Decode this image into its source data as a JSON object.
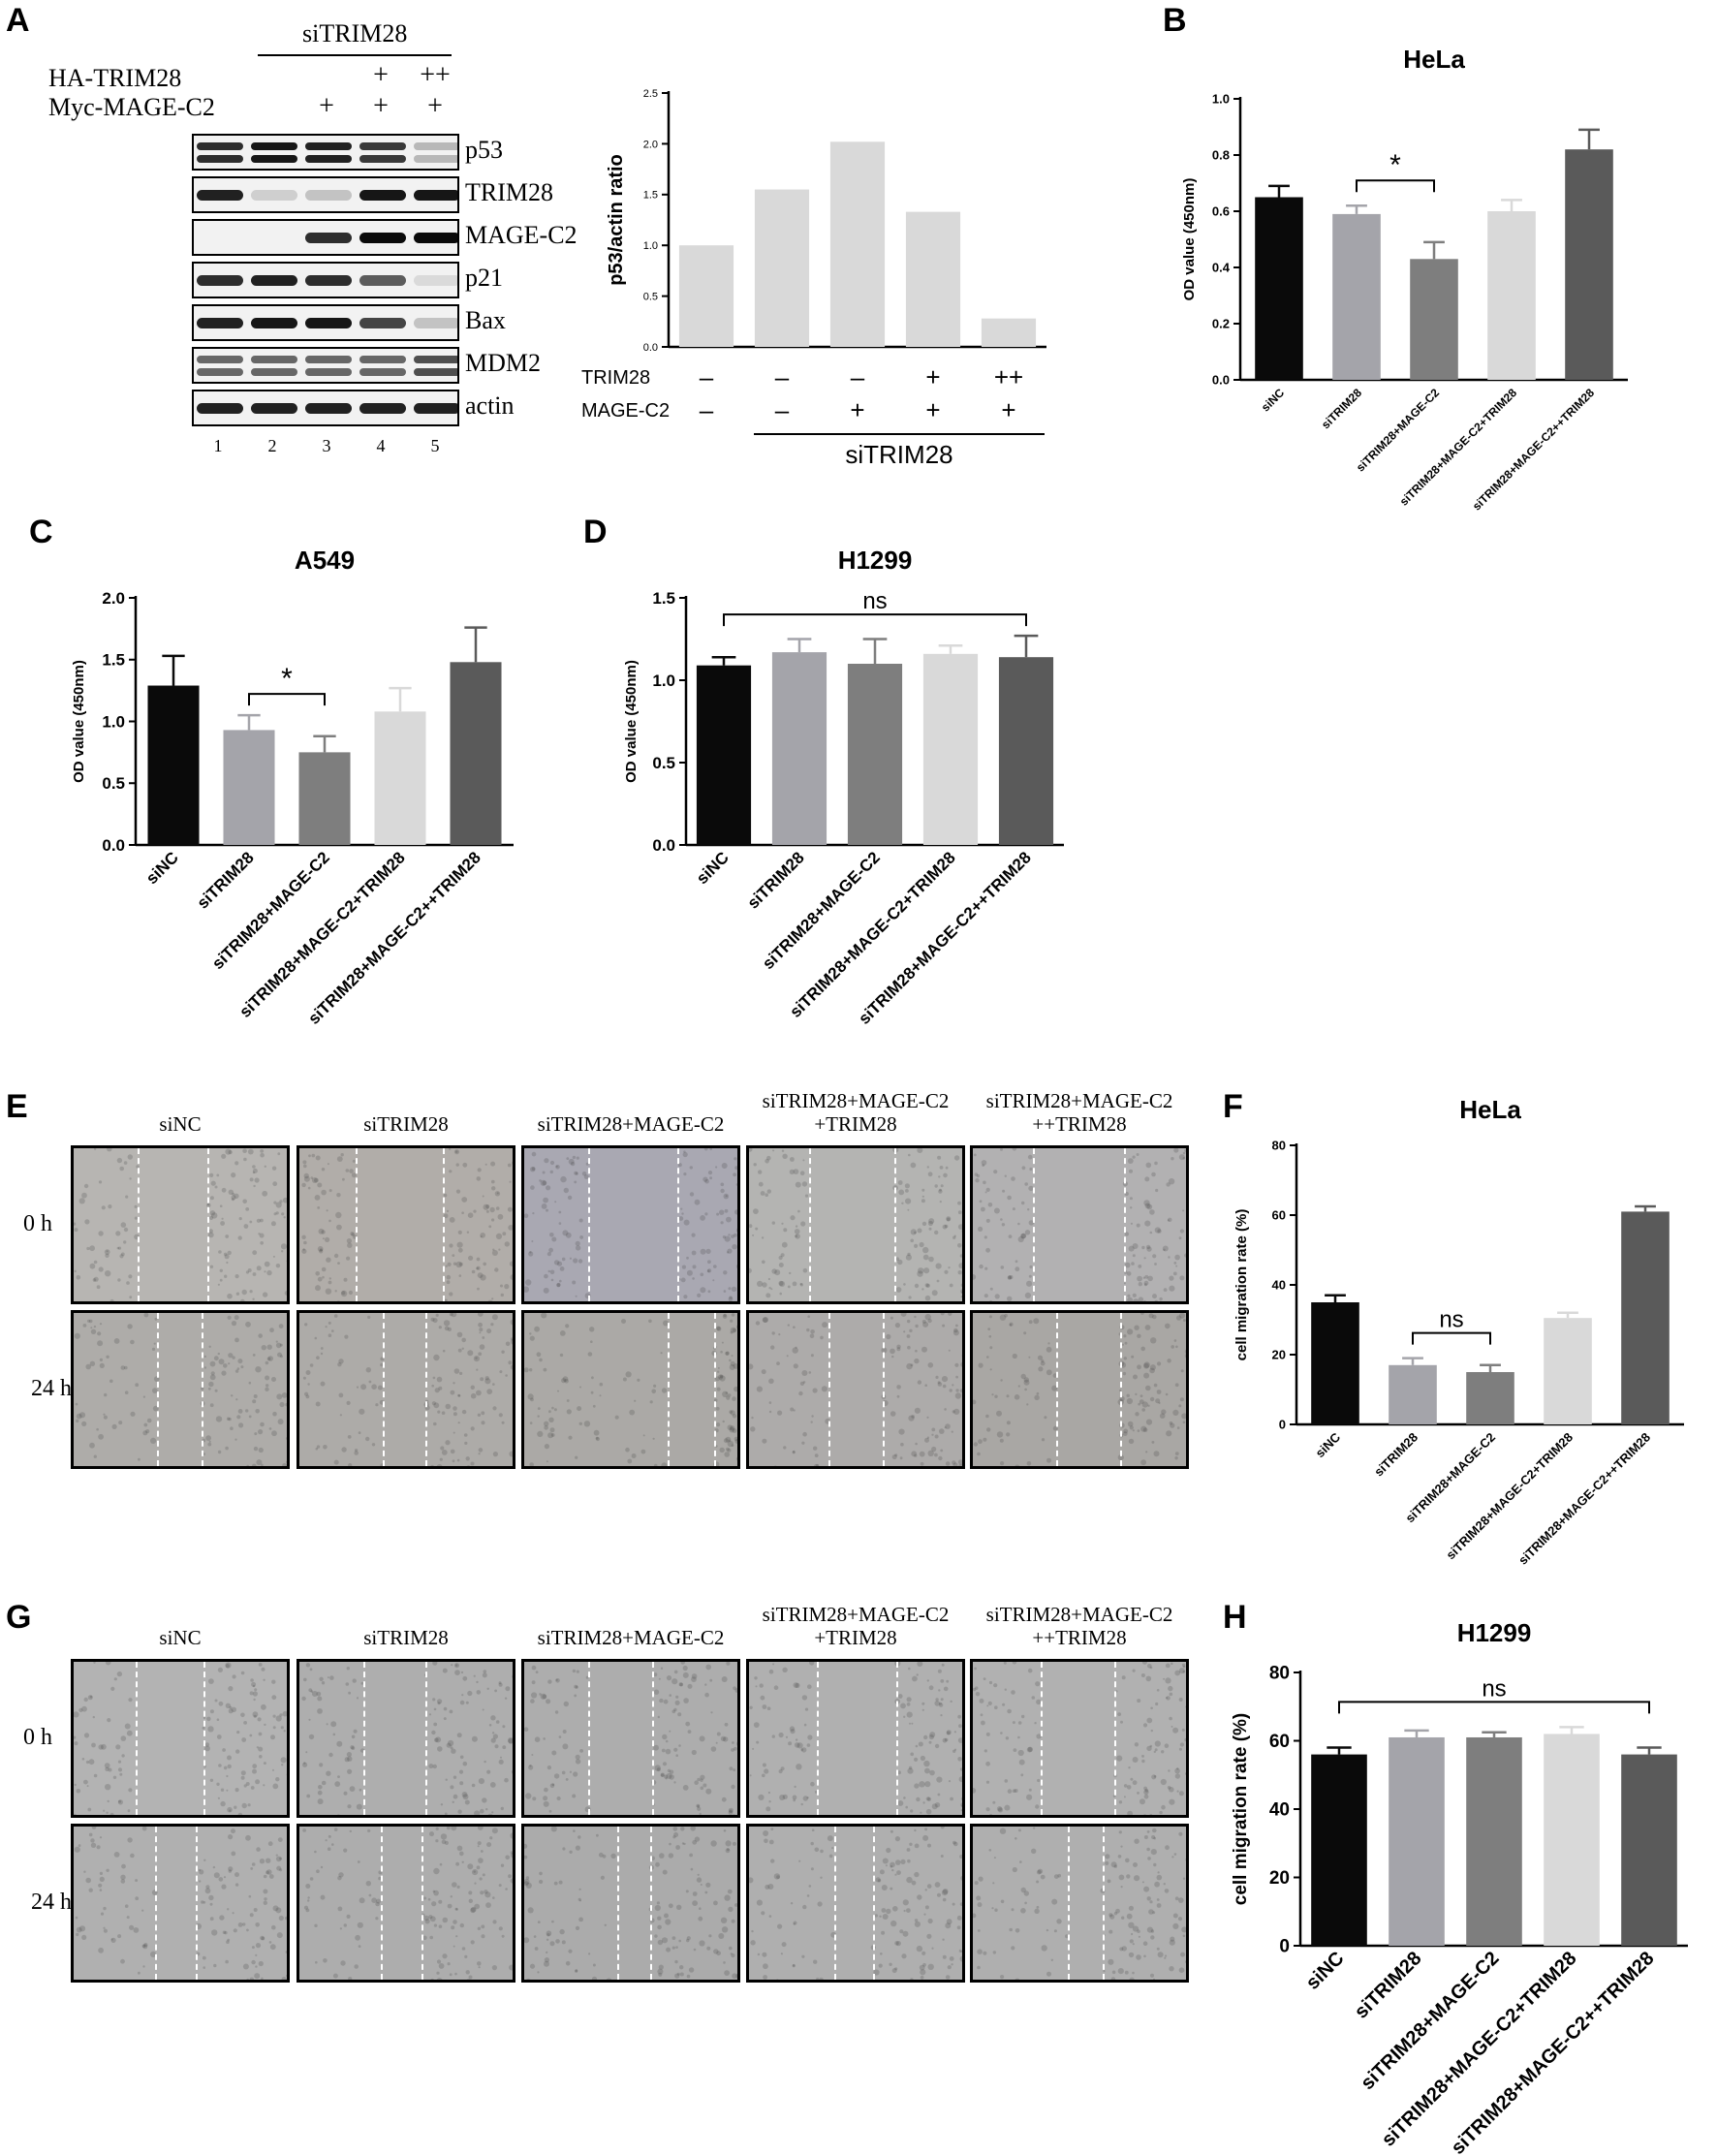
{
  "panels": {
    "a": "A",
    "b": "B",
    "c": "C",
    "d": "D",
    "e": "E",
    "f": "F",
    "g": "G",
    "h": "H"
  },
  "blot": {
    "top_group": "siTRIM28",
    "row_ha": "HA-TRIM28",
    "row_myc": "Myc-MAGE-C2",
    "ha_signs": [
      "",
      "",
      "",
      "+",
      "++"
    ],
    "myc_signs": [
      "",
      "",
      "+",
      "+",
      "+"
    ],
    "bands": [
      "p53",
      "TRIM28",
      "MAGE-C2",
      "p21",
      "Bax",
      "MDM2",
      "actin"
    ],
    "lanes": [
      "1",
      "2",
      "3",
      "4",
      "5"
    ]
  },
  "ratio_footer": {
    "trim28_label": "TRIM28",
    "magec2_label": "MAGE-C2",
    "trim28_signs": [
      "–",
      "–",
      "–",
      "+",
      "++"
    ],
    "magec2_signs": [
      "–",
      "–",
      "+",
      "+",
      "+"
    ],
    "group_label": "siTRIM28"
  },
  "categories": [
    "siNC",
    "siTRIM28",
    "siTRIM28+MAGE-C2",
    "siTRIM28+MAGE-C2+TRIM28",
    "siTRIM28+MAGE-C2++TRIM28"
  ],
  "bar_colors": [
    "#0a0a0a",
    "#a4a4aa",
    "#7e7e7e",
    "#d9d9d9",
    "#5a5a5a"
  ],
  "chart_data": [
    {
      "id": "A-ratio",
      "type": "bar",
      "title": "",
      "xlabel": "",
      "ylabel": "p53/actin ratio",
      "ylim": [
        0,
        2.5
      ],
      "yticks": [
        "0.0",
        "0.5",
        "1.0",
        "1.5",
        "2.0",
        "2.5"
      ],
      "ytick_values": [
        0,
        0.5,
        1,
        1.5,
        2,
        2.5
      ],
      "categories": [
        "1",
        "2",
        "3",
        "4",
        "5"
      ],
      "values": [
        1.0,
        1.55,
        2.02,
        1.33,
        0.28
      ],
      "errors": [
        0,
        0,
        0,
        0,
        0
      ],
      "uniform_color": "#d9d9d9",
      "show_category_labels": false
    },
    {
      "id": "B",
      "type": "bar",
      "title": "HeLa",
      "xlabel": "",
      "ylabel": "OD value (450nm)",
      "ylim": [
        0,
        1.0
      ],
      "yticks": [
        "0.0",
        "0.2",
        "0.4",
        "0.6",
        "0.8",
        "1.0"
      ],
      "ytick_values": [
        0,
        0.2,
        0.4,
        0.6,
        0.8,
        1.0
      ],
      "values": [
        0.65,
        0.59,
        0.43,
        0.6,
        0.82
      ],
      "errors": [
        0.04,
        0.03,
        0.06,
        0.04,
        0.07
      ],
      "significance": [
        {
          "from": 1,
          "to": 2,
          "label": "*"
        }
      ]
    },
    {
      "id": "C",
      "type": "bar",
      "title": "A549",
      "xlabel": "",
      "ylabel": "OD value (450nm)",
      "ylim": [
        0,
        2.0
      ],
      "yticks": [
        "0.0",
        "0.5",
        "1.0",
        "1.5",
        "2.0"
      ],
      "ytick_values": [
        0,
        0.5,
        1.0,
        1.5,
        2.0
      ],
      "values": [
        1.29,
        0.93,
        0.75,
        1.08,
        1.48
      ],
      "errors": [
        0.24,
        0.12,
        0.13,
        0.19,
        0.28
      ],
      "significance": [
        {
          "from": 1,
          "to": 2,
          "label": "*"
        }
      ]
    },
    {
      "id": "D",
      "type": "bar",
      "title": "H1299",
      "xlabel": "",
      "ylabel": "OD value (450nm)",
      "ylim": [
        0,
        1.5
      ],
      "yticks": [
        "0.0",
        "0.5",
        "1.0",
        "1.5"
      ],
      "ytick_values": [
        0,
        0.5,
        1.0,
        1.5
      ],
      "values": [
        1.09,
        1.17,
        1.1,
        1.16,
        1.14
      ],
      "errors": [
        0.05,
        0.08,
        0.15,
        0.05,
        0.13
      ],
      "significance": [
        {
          "from": 0,
          "to": 4,
          "label": "ns"
        }
      ]
    },
    {
      "id": "F",
      "type": "bar",
      "title": "HeLa",
      "xlabel": "",
      "ylabel": "cell migration rate (%)",
      "ylim": [
        0,
        80
      ],
      "yticks": [
        "0",
        "20",
        "40",
        "60",
        "80"
      ],
      "ytick_values": [
        0,
        20,
        40,
        60,
        80
      ],
      "values": [
        35,
        17,
        15,
        30.5,
        61
      ],
      "errors": [
        2,
        2,
        2,
        1.5,
        1.5
      ],
      "significance": [
        {
          "from": 1,
          "to": 2,
          "label": "ns"
        }
      ]
    },
    {
      "id": "H",
      "type": "bar",
      "title": "H1299",
      "xlabel": "",
      "ylabel": "cell migration rate (%)",
      "ylim": [
        0,
        80
      ],
      "yticks": [
        "0",
        "20",
        "40",
        "60",
        "80"
      ],
      "ytick_values": [
        0,
        20,
        40,
        60,
        80
      ],
      "values": [
        56,
        61,
        61,
        62,
        56
      ],
      "errors": [
        2,
        2,
        1.5,
        2,
        2
      ],
      "significance": [
        {
          "from": 0,
          "to": 4,
          "label": "ns"
        }
      ]
    }
  ],
  "wound_e": {
    "headers": [
      "siNC",
      "siTRIM28",
      "siTRIM28+MAGE-C2",
      "siTRIM28+MAGE-C2\n+TRIM28",
      "siTRIM28+MAGE-C2\n++TRIM28"
    ],
    "rows": [
      "0 h",
      "24 h"
    ]
  },
  "wound_g": {
    "headers": [
      "siNC",
      "siTRIM28",
      "siTRIM28+MAGE-C2",
      "siTRIM28+MAGE-C2\n+TRIM28",
      "siTRIM28+MAGE-C2\n++TRIM28"
    ],
    "rows": [
      "0 h",
      "24 h"
    ]
  }
}
